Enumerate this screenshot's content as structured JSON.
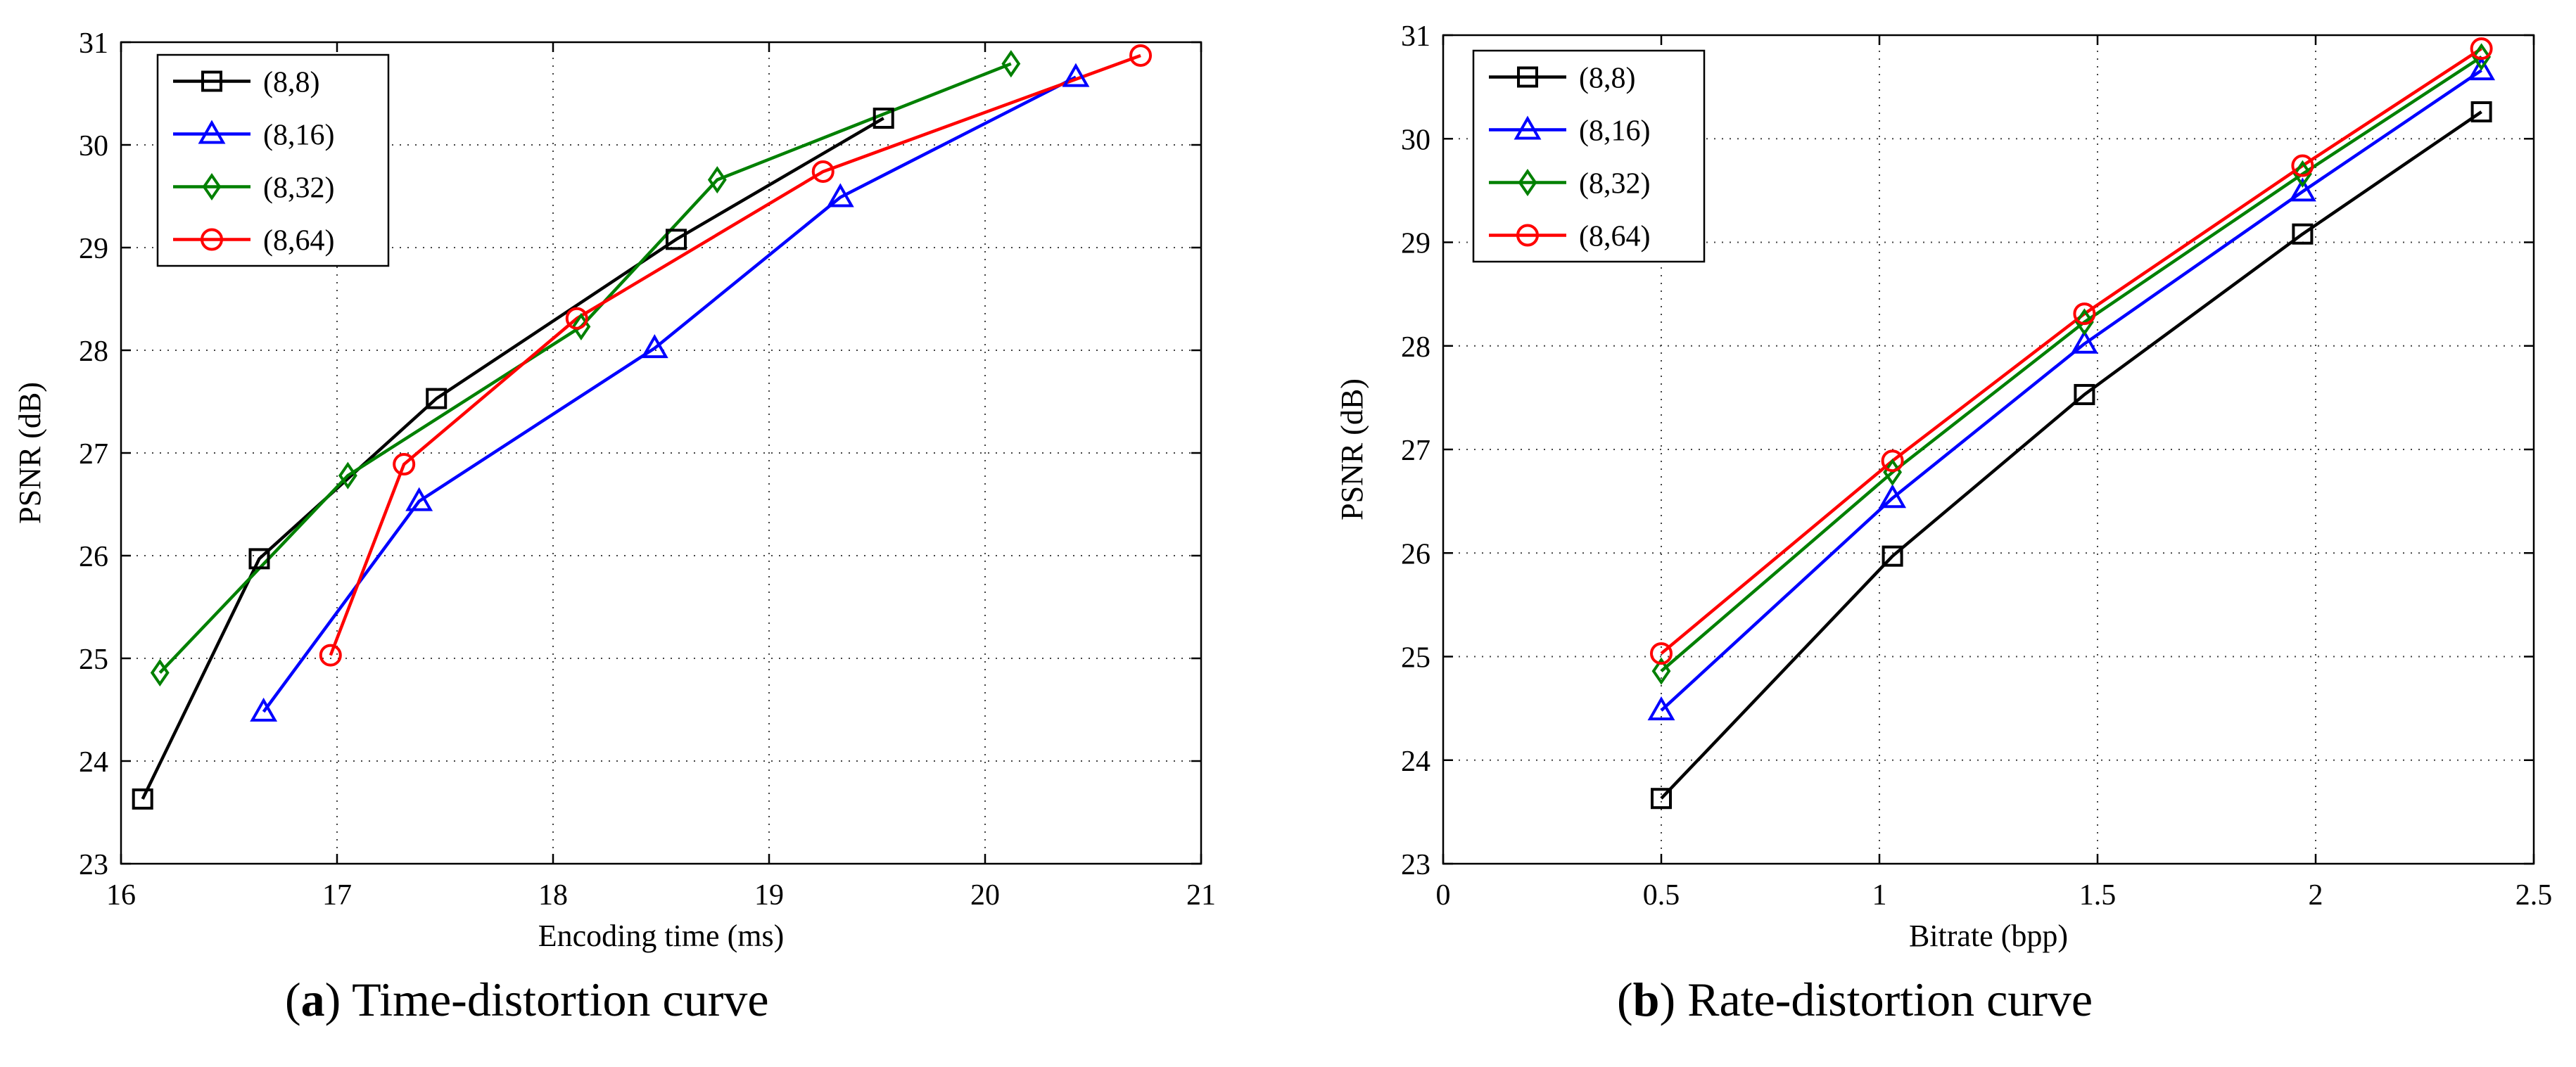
{
  "chart_data": [
    {
      "type": "line",
      "title": "",
      "xlabel": "Encoding time (ms)",
      "ylabel": "PSNR (dB)",
      "xlim": [
        16,
        21
      ],
      "ylim": [
        23,
        31
      ],
      "xticks": [
        16,
        17,
        18,
        19,
        20,
        21
      ],
      "yticks": [
        23,
        24,
        25,
        26,
        27,
        28,
        29,
        30,
        31
      ],
      "grid": true,
      "legend_position": "top-left",
      "series": [
        {
          "name": "(8,8)",
          "color": "#000000",
          "marker": "square",
          "x": [
            16.1,
            16.64,
            17.46,
            18.57,
            19.53
          ],
          "y": [
            23.63,
            25.97,
            27.53,
            29.08,
            30.26
          ]
        },
        {
          "name": "(8,16)",
          "color": "#0000ff",
          "marker": "triangle",
          "x": [
            16.66,
            17.38,
            18.47,
            19.33,
            20.42
          ],
          "y": [
            24.48,
            26.53,
            28.02,
            29.49,
            30.66
          ]
        },
        {
          "name": "(8,32)",
          "color": "#008000",
          "marker": "diamond",
          "x": [
            16.18,
            17.05,
            18.13,
            18.76,
            20.12
          ],
          "y": [
            24.86,
            26.78,
            28.23,
            29.66,
            30.79
          ]
        },
        {
          "name": "(8,64)",
          "color": "#ff0000",
          "marker": "circle",
          "x": [
            16.97,
            17.31,
            18.11,
            19.25,
            20.72
          ],
          "y": [
            25.03,
            26.89,
            28.31,
            29.74,
            30.87
          ]
        }
      ]
    },
    {
      "type": "line",
      "title": "",
      "xlabel": "Bitrate (bpp)",
      "ylabel": "PSNR (dB)",
      "xlim": [
        0,
        2.5
      ],
      "ylim": [
        23,
        31
      ],
      "xticks": [
        0,
        0.5,
        1,
        1.5,
        2,
        2.5
      ],
      "yticks": [
        23,
        24,
        25,
        26,
        27,
        28,
        29,
        30,
        31
      ],
      "grid": true,
      "legend_position": "top-left",
      "series": [
        {
          "name": "(8,8)",
          "color": "#000000",
          "marker": "square",
          "x": [
            0.5,
            1.03,
            1.47,
            1.97,
            2.38
          ],
          "y": [
            23.63,
            25.97,
            27.53,
            29.08,
            30.26
          ]
        },
        {
          "name": "(8,16)",
          "color": "#0000ff",
          "marker": "triangle",
          "x": [
            0.5,
            1.03,
            1.47,
            1.97,
            2.38
          ],
          "y": [
            24.48,
            26.53,
            28.02,
            29.49,
            30.66
          ]
        },
        {
          "name": "(8,32)",
          "color": "#008000",
          "marker": "diamond",
          "x": [
            0.5,
            1.03,
            1.47,
            1.97,
            2.38
          ],
          "y": [
            24.86,
            26.78,
            28.23,
            29.66,
            30.79
          ]
        },
        {
          "name": "(8,64)",
          "color": "#ff0000",
          "marker": "circle",
          "x": [
            0.5,
            1.03,
            1.47,
            1.97,
            2.38
          ],
          "y": [
            25.03,
            26.89,
            28.31,
            29.74,
            30.87
          ]
        }
      ]
    }
  ],
  "captions": {
    "a": {
      "label": "a",
      "text": ") Time-distortion curve"
    },
    "b": {
      "label": "b",
      "text": ") Rate-distortion curve"
    }
  }
}
